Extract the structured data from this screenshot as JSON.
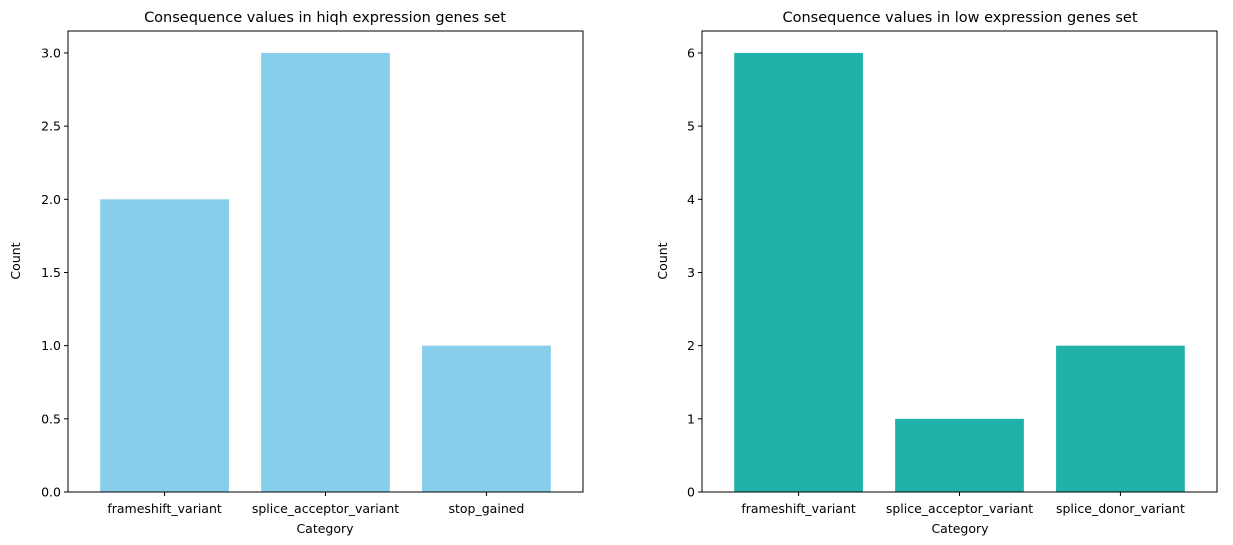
{
  "chart_data": [
    {
      "type": "bar",
      "title": "Consequence values in hiqh expression genes set",
      "xlabel": "Category",
      "ylabel": "Count",
      "categories": [
        "frameshift_variant",
        "splice_acceptor_variant",
        "stop_gained"
      ],
      "values": [
        2,
        3,
        1
      ],
      "ylim": [
        0,
        3.15
      ],
      "yticks": [
        0.0,
        0.5,
        1.0,
        1.5,
        2.0,
        2.5,
        3.0
      ],
      "ytick_labels": [
        "0.0",
        "0.5",
        "1.0",
        "1.5",
        "2.0",
        "2.5",
        "3.0"
      ],
      "color": "#87ceeb",
      "grid": false,
      "legend": "none"
    },
    {
      "type": "bar",
      "title": "Consequence values in low expression genes set",
      "xlabel": "Category",
      "ylabel": "Count",
      "categories": [
        "frameshift_variant",
        "splice_acceptor_variant",
        "splice_donor_variant"
      ],
      "values": [
        6,
        1,
        2
      ],
      "ylim": [
        0,
        6.3
      ],
      "yticks": [
        0,
        1,
        2,
        3,
        4,
        5,
        6
      ],
      "ytick_labels": [
        "0",
        "1",
        "2",
        "3",
        "4",
        "5",
        "6"
      ],
      "color": "#20b2aa",
      "grid": false,
      "legend": "none"
    }
  ]
}
